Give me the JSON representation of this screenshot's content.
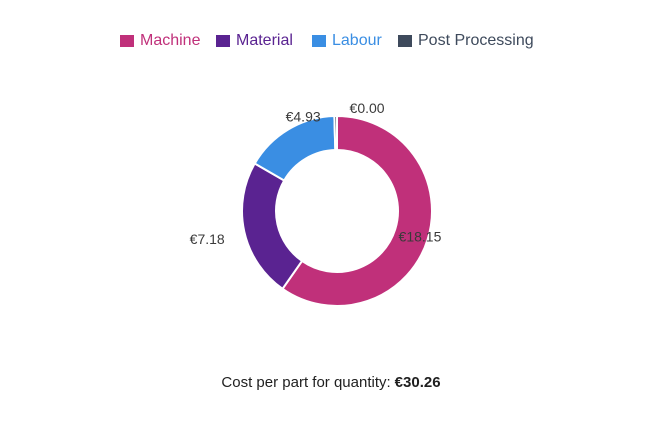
{
  "chart_data": {
    "type": "pie",
    "categories": [
      "Machine",
      "Material",
      "Labour",
      "Post Processing"
    ],
    "values": [
      18.15,
      7.18,
      4.93,
      0.0
    ],
    "value_labels": [
      "€18.15",
      "€7.18",
      "€4.93",
      "€0.00"
    ],
    "colors": [
      "#c0307a",
      "#5a2391",
      "#3a8ee3",
      "#3e4a5c"
    ],
    "legend_position": "top-center",
    "donut": true
  },
  "legend": {
    "items": [
      {
        "label": "Machine",
        "color": "#c0307a"
      },
      {
        "label": "Material",
        "color": "#5a2391"
      },
      {
        "label": "Labour",
        "color": "#3a8ee3"
      },
      {
        "label": "Post Processing",
        "color": "#3e4a5c"
      }
    ]
  },
  "footer": {
    "label": "Cost per part for quantity:",
    "total": "€30.26"
  }
}
